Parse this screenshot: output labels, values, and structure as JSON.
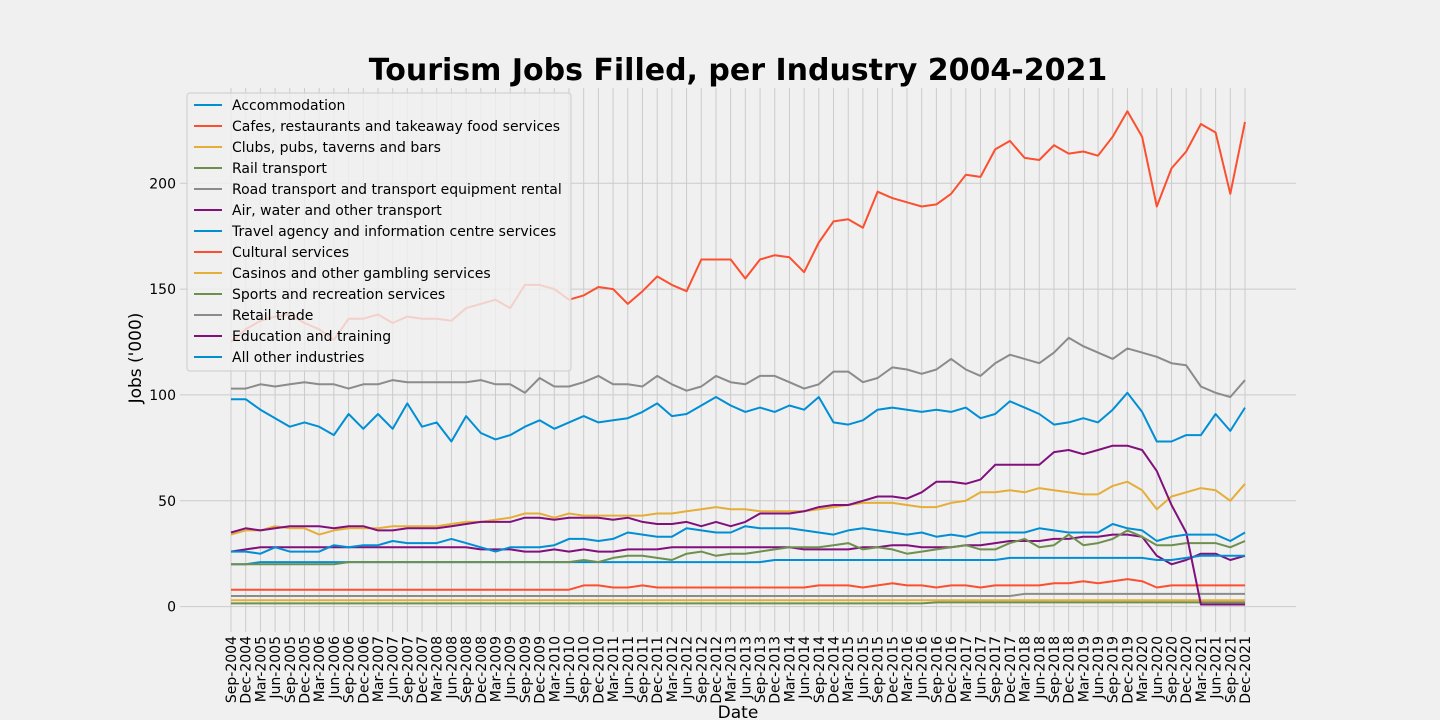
{
  "chart_data": {
    "type": "line",
    "title": "Tourism Jobs Filled, per Industry 2004-2021",
    "xlabel": "Date",
    "ylabel": "Jobs ('000)",
    "ylim": [
      -12,
      245
    ],
    "yticks": [
      0,
      50,
      100,
      150,
      200
    ],
    "grid": true,
    "legend_position": "top-left",
    "x": [
      "Sep-2004",
      "Dec-2004",
      "Mar-2005",
      "Jun-2005",
      "Sep-2005",
      "Dec-2005",
      "Mar-2006",
      "Jun-2006",
      "Sep-2006",
      "Dec-2006",
      "Mar-2007",
      "Jun-2007",
      "Sep-2007",
      "Dec-2007",
      "Mar-2008",
      "Jun-2008",
      "Sep-2008",
      "Dec-2008",
      "Mar-2009",
      "Jun-2009",
      "Sep-2009",
      "Dec-2009",
      "Mar-2010",
      "Jun-2010",
      "Sep-2010",
      "Dec-2010",
      "Mar-2011",
      "Jun-2011",
      "Sep-2011",
      "Dec-2011",
      "Mar-2012",
      "Jun-2012",
      "Sep-2012",
      "Dec-2012",
      "Mar-2013",
      "Jun-2013",
      "Sep-2013",
      "Dec-2013",
      "Mar-2014",
      "Jun-2014",
      "Sep-2014",
      "Dec-2014",
      "Mar-2015",
      "Jun-2015",
      "Sep-2015",
      "Dec-2015",
      "Mar-2016",
      "Jun-2016",
      "Sep-2016",
      "Dec-2016",
      "Mar-2017",
      "Jun-2017",
      "Sep-2017",
      "Dec-2017",
      "Mar-2018",
      "Jun-2018",
      "Sep-2018",
      "Dec-2018",
      "Mar-2019",
      "Jun-2019",
      "Sep-2019",
      "Dec-2019",
      "Mar-2020",
      "Jun-2020",
      "Sep-2020",
      "Dec-2020",
      "Mar-2021",
      "Jun-2021",
      "Sep-2021",
      "Dec-2021"
    ],
    "series": [
      {
        "name": "Accommodation",
        "color": "#008fd5",
        "values": [
          98,
          98,
          93,
          89,
          85,
          87,
          85,
          81,
          91,
          84,
          91,
          84,
          96,
          85,
          87,
          78,
          90,
          82,
          79,
          81,
          85,
          88,
          84,
          87,
          90,
          87,
          88,
          89,
          92,
          96,
          90,
          91,
          95,
          99,
          95,
          92,
          94,
          92,
          95,
          93,
          99,
          87,
          86,
          88,
          93,
          94,
          93,
          92,
          93,
          92,
          94,
          89,
          91,
          97,
          94,
          91,
          86,
          87,
          89,
          87,
          93,
          101,
          92,
          78,
          78,
          81,
          81,
          91,
          83,
          94
        ]
      },
      {
        "name": "Cafes, restaurants and takeaway food services",
        "color": "#fc4f30",
        "values": [
          125,
          131,
          135,
          137,
          138,
          134,
          131,
          126,
          136,
          136,
          138,
          134,
          137,
          136,
          136,
          135,
          141,
          143,
          145,
          141,
          152,
          152,
          150,
          145,
          147,
          151,
          150,
          143,
          149,
          156,
          152,
          149,
          164,
          164,
          164,
          155,
          164,
          166,
          165,
          158,
          172,
          182,
          183,
          179,
          196,
          193,
          191,
          189,
          190,
          195,
          204,
          203,
          216,
          220,
          212,
          211,
          218,
          214,
          215,
          213,
          222,
          234,
          222,
          189,
          207,
          215,
          228,
          224,
          195,
          229
        ]
      },
      {
        "name": "Clubs, pubs, taverns and bars",
        "color": "#e5ae38",
        "values": [
          3,
          3,
          3,
          3,
          3,
          3,
          3,
          3,
          3,
          3,
          3,
          3,
          3,
          3,
          3,
          3,
          3,
          3,
          3,
          3,
          3,
          3,
          3,
          3,
          3,
          3,
          3,
          3,
          3,
          3,
          3,
          3,
          3,
          3,
          3,
          3,
          3,
          3,
          3,
          3,
          3,
          3,
          3,
          3,
          3,
          3,
          3,
          3,
          3,
          3,
          3,
          3,
          3,
          3,
          3,
          3,
          3,
          3,
          3,
          3,
          3,
          3,
          3,
          3,
          3,
          3,
          3,
          3,
          3,
          3
        ]
      },
      {
        "name": "Rail transport",
        "color": "#6d904f",
        "values": [
          1.5,
          1.5,
          1.5,
          1.5,
          1.5,
          1.5,
          1.5,
          1.5,
          1.5,
          1.5,
          1.5,
          1.5,
          1.5,
          1.5,
          1.5,
          1.5,
          1.5,
          1.5,
          1.5,
          1.5,
          1.5,
          1.5,
          1.5,
          1.5,
          1.5,
          1.5,
          1.5,
          1.5,
          1.5,
          1.5,
          1.5,
          1.5,
          1.5,
          1.5,
          1.5,
          1.5,
          1.5,
          1.5,
          1.5,
          1.5,
          1.5,
          1.5,
          1.5,
          1.5,
          1.5,
          1.5,
          1.5,
          1.5,
          2,
          2,
          2,
          2,
          2,
          2,
          2,
          2,
          2,
          2,
          2,
          2,
          2,
          2,
          2,
          2,
          2,
          2,
          2,
          2,
          2,
          2
        ]
      },
      {
        "name": "Road transport and transport equipment rental",
        "color": "#8b8b8b",
        "values": [
          103,
          103,
          105,
          104,
          105,
          106,
          105,
          105,
          103,
          105,
          105,
          107,
          106,
          106,
          106,
          106,
          106,
          107,
          105,
          105,
          101,
          108,
          104,
          104,
          106,
          109,
          105,
          105,
          104,
          109,
          105,
          102,
          104,
          109,
          106,
          105,
          109,
          109,
          106,
          103,
          105,
          111,
          111,
          106,
          108,
          113,
          112,
          110,
          112,
          117,
          112,
          109,
          115,
          119,
          117,
          115,
          120,
          127,
          123,
          120,
          117,
          122,
          120,
          118,
          115,
          114,
          104,
          101,
          99,
          107
        ]
      },
      {
        "name": "Air, water and other transport",
        "color": "#810f7c",
        "values": [
          26,
          27,
          28,
          28,
          28,
          28,
          28,
          28,
          28,
          28,
          28,
          28,
          28,
          28,
          28,
          28,
          28,
          27,
          27,
          27,
          26,
          26,
          27,
          26,
          27,
          26,
          26,
          27,
          27,
          27,
          28,
          28,
          28,
          28,
          28,
          28,
          28,
          28,
          28,
          27,
          27,
          27,
          27,
          28,
          28,
          29,
          29,
          28,
          28,
          28,
          29,
          29,
          30,
          31,
          31,
          31,
          32,
          32,
          33,
          33,
          34,
          34,
          33,
          24,
          20,
          22,
          25,
          25,
          22,
          24
        ]
      },
      {
        "name": "Travel agency and information centre services",
        "color": "#008fd5",
        "values": [
          20,
          20,
          21,
          21,
          21,
          21,
          21,
          21,
          21,
          21,
          21,
          21,
          21,
          21,
          21,
          21,
          21,
          21,
          21,
          21,
          21,
          21,
          21,
          21,
          21,
          21,
          21,
          21,
          21,
          21,
          21,
          21,
          21,
          21,
          21,
          21,
          21,
          22,
          22,
          22,
          22,
          22,
          22,
          22,
          22,
          22,
          22,
          22,
          22,
          22,
          22,
          22,
          22,
          23,
          23,
          23,
          23,
          23,
          23,
          23,
          23,
          23,
          23,
          22,
          22,
          23,
          24,
          24,
          24,
          24
        ]
      },
      {
        "name": "Cultural services",
        "color": "#fc4f30",
        "values": [
          8,
          8,
          8,
          8,
          8,
          8,
          8,
          8,
          8,
          8,
          8,
          8,
          8,
          8,
          8,
          8,
          8,
          8,
          8,
          8,
          8,
          8,
          8,
          8,
          10,
          10,
          9,
          9,
          10,
          9,
          9,
          9,
          9,
          9,
          9,
          9,
          9,
          9,
          9,
          9,
          10,
          10,
          10,
          9,
          10,
          11,
          10,
          10,
          9,
          10,
          10,
          9,
          10,
          10,
          10,
          10,
          11,
          11,
          12,
          11,
          12,
          13,
          12,
          9,
          10,
          10,
          10,
          10,
          10,
          10
        ]
      },
      {
        "name": "Casinos and other gambling services",
        "color": "#e5ae38",
        "values": [
          34,
          36,
          36,
          38,
          37,
          37,
          34,
          36,
          37,
          37,
          37,
          38,
          38,
          38,
          38,
          39,
          40,
          40,
          41,
          42,
          44,
          44,
          42,
          44,
          43,
          43,
          43,
          43,
          43,
          44,
          44,
          45,
          46,
          47,
          46,
          46,
          45,
          45,
          45,
          45,
          46,
          47,
          48,
          49,
          49,
          49,
          48,
          47,
          47,
          49,
          50,
          54,
          54,
          55,
          54,
          56,
          55,
          54,
          53,
          53,
          57,
          59,
          55,
          46,
          52,
          54,
          56,
          55,
          50,
          58
        ]
      },
      {
        "name": "Sports and recreation services",
        "color": "#6d904f",
        "values": [
          20,
          20,
          20,
          20,
          20,
          20,
          20,
          20,
          21,
          21,
          21,
          21,
          21,
          21,
          21,
          21,
          21,
          21,
          21,
          21,
          21,
          21,
          21,
          21,
          22,
          21,
          23,
          24,
          24,
          23,
          22,
          25,
          26,
          24,
          25,
          25,
          26,
          27,
          28,
          28,
          28,
          29,
          30,
          27,
          28,
          27,
          25,
          26,
          27,
          28,
          29,
          27,
          27,
          30,
          32,
          28,
          29,
          34,
          29,
          30,
          32,
          36,
          33,
          29,
          29,
          30,
          30,
          30,
          28,
          31
        ]
      },
      {
        "name": "Retail trade",
        "color": "#8b8b8b",
        "values": [
          5,
          5,
          5,
          5,
          5,
          5,
          5,
          5,
          5,
          5,
          5,
          5,
          5,
          5,
          5,
          5,
          5,
          5,
          5,
          5,
          5,
          5,
          5,
          5,
          5,
          5,
          5,
          5,
          5,
          5,
          5,
          5,
          5,
          5,
          5,
          5,
          5,
          5,
          5,
          5,
          5,
          5,
          5,
          5,
          5,
          5,
          5,
          5,
          5,
          5,
          5,
          5,
          5,
          5,
          6,
          6,
          6,
          6,
          6,
          6,
          6,
          6,
          6,
          6,
          6,
          6,
          6,
          6,
          6,
          6
        ]
      },
      {
        "name": "Education and training",
        "color": "#810f7c",
        "values": [
          35,
          37,
          36,
          37,
          38,
          38,
          38,
          37,
          38,
          38,
          36,
          36,
          37,
          37,
          37,
          38,
          39,
          40,
          40,
          40,
          42,
          42,
          41,
          42,
          42,
          42,
          41,
          42,
          40,
          39,
          39,
          40,
          38,
          40,
          38,
          40,
          44,
          44,
          44,
          45,
          47,
          48,
          48,
          50,
          52,
          52,
          51,
          54,
          59,
          59,
          58,
          60,
          67,
          67,
          67,
          67,
          73,
          74,
          72,
          74,
          76,
          76,
          74,
          64,
          48,
          35,
          1,
          1,
          1,
          1
        ]
      },
      {
        "name": "All other industries",
        "color": "#008fd5",
        "values": [
          26,
          26,
          25,
          28,
          26,
          26,
          26,
          29,
          28,
          29,
          29,
          31,
          30,
          30,
          30,
          32,
          30,
          28,
          26,
          28,
          28,
          28,
          29,
          32,
          32,
          31,
          32,
          35,
          34,
          33,
          33,
          37,
          36,
          35,
          35,
          38,
          37,
          37,
          37,
          36,
          35,
          34,
          36,
          37,
          36,
          35,
          34,
          35,
          33,
          34,
          33,
          35,
          35,
          35,
          35,
          37,
          36,
          35,
          35,
          35,
          39,
          37,
          36,
          31,
          33,
          34,
          34,
          34,
          31,
          35
        ]
      }
    ]
  }
}
